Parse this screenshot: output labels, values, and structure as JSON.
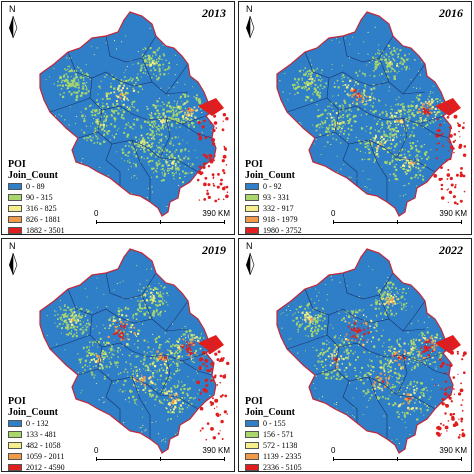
{
  "panels": [
    {
      "year": "2013",
      "legend_title": "POI",
      "legend_field": "Join_Count",
      "classes": [
        {
          "label": "0 - 89",
          "color": "#2e7fc7"
        },
        {
          "label": "90 - 315",
          "color": "#a9d76b"
        },
        {
          "label": "316 - 825",
          "color": "#f4ef8a"
        },
        {
          "label": "826 - 1881",
          "color": "#f39a4a"
        },
        {
          "label": "1882 - 3501",
          "color": "#e11d1d"
        }
      ],
      "scale_start": "0",
      "scale_end": "390 KM"
    },
    {
      "year": "2016",
      "legend_title": "POI",
      "legend_field": "Join_Count",
      "classes": [
        {
          "label": "0 - 92",
          "color": "#2e7fc7"
        },
        {
          "label": "93 - 331",
          "color": "#a9d76b"
        },
        {
          "label": "332 - 917",
          "color": "#f4ef8a"
        },
        {
          "label": "918 - 1979",
          "color": "#f39a4a"
        },
        {
          "label": "1980 - 3752",
          "color": "#e11d1d"
        }
      ],
      "scale_start": "0",
      "scale_end": "390 KM"
    },
    {
      "year": "2019",
      "legend_title": "POI",
      "legend_field": "Join_Count",
      "classes": [
        {
          "label": "0 - 132",
          "color": "#2e7fc7"
        },
        {
          "label": "133 - 481",
          "color": "#a9d76b"
        },
        {
          "label": "482 - 1058",
          "color": "#f4ef8a"
        },
        {
          "label": "1059 - 2011",
          "color": "#f39a4a"
        },
        {
          "label": "2012 - 4590",
          "color": "#e11d1d"
        }
      ],
      "scale_start": "0",
      "scale_end": "390 KM"
    },
    {
      "year": "2022",
      "legend_title": "POI",
      "legend_field": "Join_Count",
      "classes": [
        {
          "label": "0 - 155",
          "color": "#2e7fc7"
        },
        {
          "label": "156 - 571",
          "color": "#a9d76b"
        },
        {
          "label": "572 - 1138",
          "color": "#f4ef8a"
        },
        {
          "label": "1139 - 2335",
          "color": "#f39a4a"
        },
        {
          "label": "2336 - 5105",
          "color": "#e11d1d"
        }
      ],
      "scale_start": "0",
      "scale_end": "390 KM"
    }
  ],
  "north_label": "N",
  "colors": {
    "background_region": "#2f7ec8",
    "boundary": "#c0283a",
    "sub_boundary": "#1d2f6a"
  }
}
